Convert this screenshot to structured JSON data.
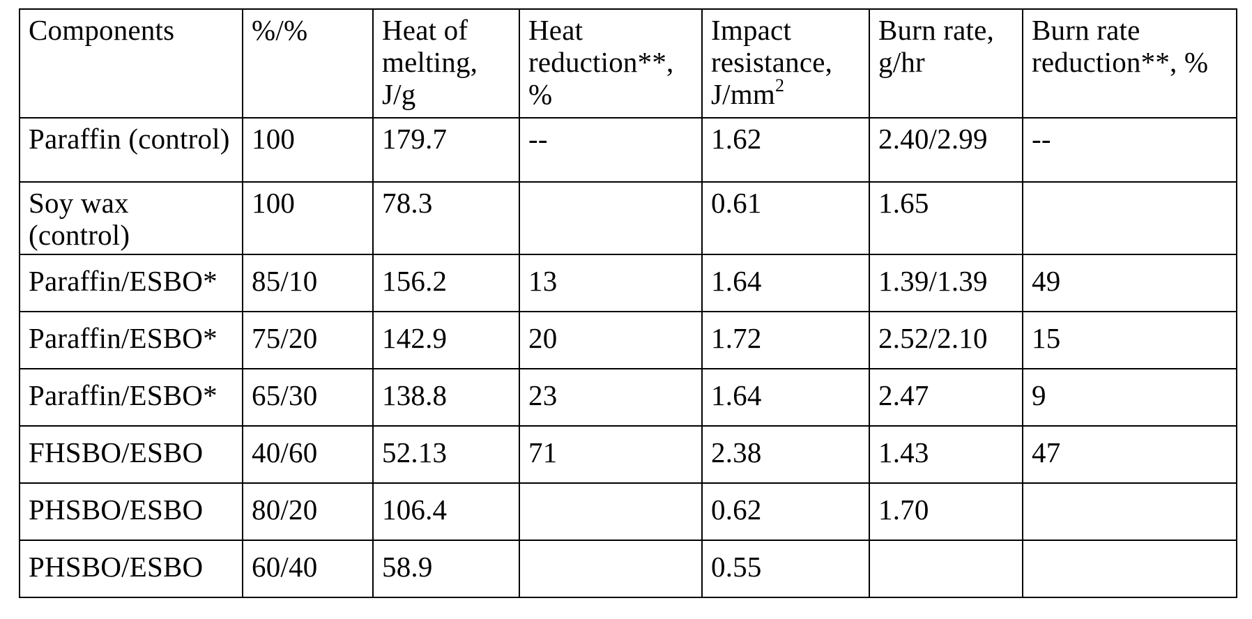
{
  "table": {
    "headers": [
      "Components",
      "%/%",
      "Heat of melting, J/g",
      "Heat reduction**, %",
      "Impact resistance, J/mm",
      "Burn rate, g/hr",
      "Burn rate reduction**, %"
    ],
    "impact_unit_exponent": "2",
    "rows": [
      [
        "Paraffin (control)",
        "100",
        "179.7",
        "--",
        "1.62",
        "2.40/2.99",
        "--"
      ],
      [
        "Soy wax (control)",
        "100",
        "78.3",
        "",
        "0.61",
        "1.65",
        ""
      ],
      [
        "Paraffin/ESBO*",
        "85/10",
        "156.2",
        "13",
        "1.64",
        "1.39/1.39",
        "49"
      ],
      [
        "Paraffin/ESBO*",
        "75/20",
        "142.9",
        "20",
        "1.72",
        "2.52/2.10",
        "15"
      ],
      [
        "Paraffin/ESBO*",
        "65/30",
        "138.8",
        "23",
        "1.64",
        "2.47",
        "9"
      ],
      [
        "FHSBO/ESBO",
        "40/60",
        "52.13",
        "71",
        "2.38",
        "1.43",
        "47"
      ],
      [
        "PHSBO/ESBO",
        "80/20",
        "106.4",
        "",
        "0.62",
        "1.70",
        ""
      ],
      [
        "PHSBO/ESBO",
        "60/40",
        "58.9",
        "",
        "0.55",
        "",
        ""
      ]
    ]
  }
}
